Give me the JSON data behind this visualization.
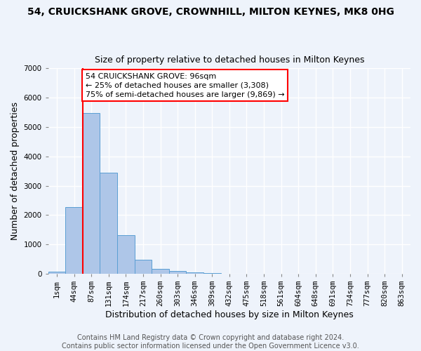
{
  "title": "54, CRUICKSHANK GROVE, CROWNHILL, MILTON KEYNES, MK8 0HG",
  "subtitle": "Size of property relative to detached houses in Milton Keynes",
  "xlabel": "Distribution of detached houses by size in Milton Keynes",
  "ylabel": "Number of detached properties",
  "footer_line1": "Contains HM Land Registry data © Crown copyright and database right 2024.",
  "footer_line2": "Contains public sector information licensed under the Open Government Licence v3.0.",
  "bar_labels": [
    "1sqm",
    "44sqm",
    "87sqm",
    "131sqm",
    "174sqm",
    "217sqm",
    "260sqm",
    "303sqm",
    "346sqm",
    "389sqm",
    "432sqm",
    "475sqm",
    "518sqm",
    "561sqm",
    "604sqm",
    "648sqm",
    "691sqm",
    "734sqm",
    "777sqm",
    "820sqm",
    "863sqm"
  ],
  "bar_values": [
    80,
    2280,
    5480,
    3440,
    1310,
    470,
    160,
    90,
    55,
    30,
    0,
    0,
    0,
    0,
    0,
    0,
    0,
    0,
    0,
    0,
    0
  ],
  "bar_color": "#aec6e8",
  "bar_edgecolor": "#5a9fd4",
  "ylim": [
    0,
    7000
  ],
  "yticks": [
    0,
    1000,
    2000,
    3000,
    4000,
    5000,
    6000,
    7000
  ],
  "property_label": "54 CRUICKSHANK GROVE: 96sqm",
  "percentile_low_text": "← 25% of detached houses are smaller (3,308)",
  "percentile_high_text": "75% of semi-detached houses are larger (9,869) →",
  "vline_x_index": 2,
  "background_color": "#eef3fb",
  "grid_color": "#ffffff",
  "title_fontsize": 10,
  "subtitle_fontsize": 9,
  "axis_label_fontsize": 9,
  "tick_fontsize": 7.5,
  "footer_fontsize": 7,
  "annotation_fontsize": 8
}
